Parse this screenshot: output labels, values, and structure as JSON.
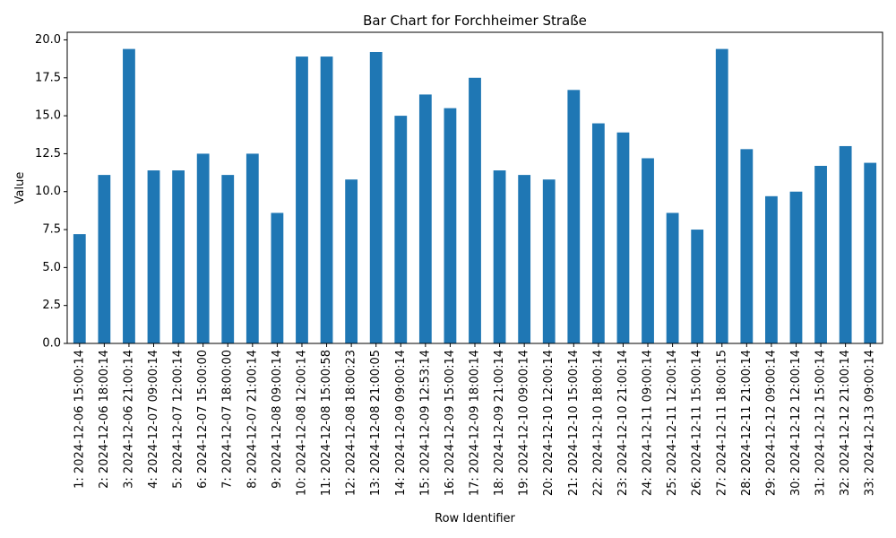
{
  "chart_data": {
    "type": "bar",
    "title": "Bar Chart for Forchheimer Straße",
    "xlabel": "Row Identifier",
    "ylabel": "Value",
    "ylim": [
      0,
      20.5
    ],
    "yticks": [
      "0.0",
      "2.5",
      "5.0",
      "7.5",
      "10.0",
      "12.5",
      "15.0",
      "17.5",
      "20.0"
    ],
    "bar_color": "#1f77b4",
    "grid": false,
    "categories": [
      "1: 2024-12-06 15:00:14",
      "2: 2024-12-06 18:00:14",
      "3: 2024-12-06 21:00:14",
      "4: 2024-12-07 09:00:14",
      "5: 2024-12-07 12:00:14",
      "6: 2024-12-07 15:00:00",
      "7: 2024-12-07 18:00:00",
      "8: 2024-12-07 21:00:14",
      "9: 2024-12-08 09:00:14",
      "10: 2024-12-08 12:00:14",
      "11: 2024-12-08 15:00:58",
      "12: 2024-12-08 18:00:23",
      "13: 2024-12-08 21:00:05",
      "14: 2024-12-09 09:00:14",
      "15: 2024-12-09 12:53:14",
      "16: 2024-12-09 15:00:14",
      "17: 2024-12-09 18:00:14",
      "18: 2024-12-09 21:00:14",
      "19: 2024-12-10 09:00:14",
      "20: 2024-12-10 12:00:14",
      "21: 2024-12-10 15:00:14",
      "22: 2024-12-10 18:00:14",
      "23: 2024-12-10 21:00:14",
      "24: 2024-12-11 09:00:14",
      "25: 2024-12-11 12:00:14",
      "26: 2024-12-11 15:00:14",
      "27: 2024-12-11 18:00:15",
      "28: 2024-12-11 21:00:14",
      "29: 2024-12-12 09:00:14",
      "30: 2024-12-12 12:00:14",
      "31: 2024-12-12 15:00:14",
      "32: 2024-12-12 21:00:14",
      "33: 2024-12-13 09:00:14"
    ],
    "values": [
      7.2,
      11.1,
      19.4,
      11.4,
      11.4,
      12.5,
      11.1,
      12.5,
      8.6,
      18.9,
      18.9,
      10.8,
      19.2,
      15.0,
      16.4,
      15.5,
      17.5,
      11.4,
      11.1,
      10.8,
      16.7,
      14.5,
      13.9,
      12.2,
      8.6,
      7.5,
      19.4,
      12.8,
      9.7,
      10.0,
      11.7,
      13.0,
      11.9
    ]
  }
}
